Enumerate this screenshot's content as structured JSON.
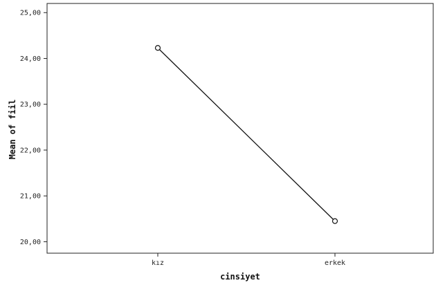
{
  "chart_data": {
    "type": "line",
    "title": "",
    "xlabel": "cinsiyet",
    "ylabel": "Mean of fiil",
    "categories": [
      "kız",
      "erkek"
    ],
    "series": [
      {
        "values": [
          24.23,
          20.45
        ]
      }
    ],
    "ylim": [
      19.75,
      25.2
    ],
    "yticks": [
      "20,00",
      "21,00",
      "22,00",
      "23,00",
      "24,00",
      "25,00"
    ],
    "ytick_values": [
      20,
      21,
      22,
      23,
      24,
      25
    ],
    "grid": false,
    "legend": "none"
  }
}
